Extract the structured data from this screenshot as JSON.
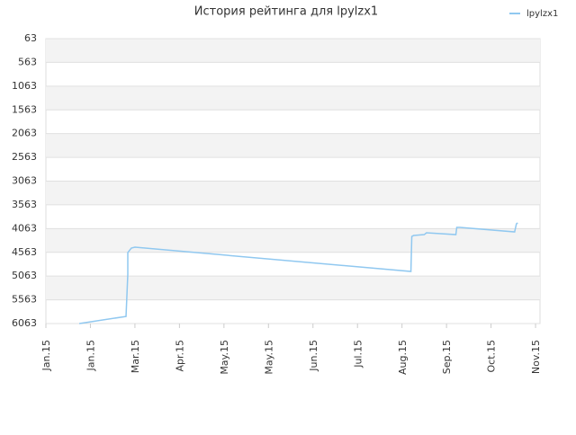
{
  "chart_data": {
    "type": "line",
    "title": "История рейтинга для lpylzx1",
    "x_inverted": false,
    "y_inverted": true,
    "grid": true,
    "banded": true,
    "legend": "top-right",
    "xlim": [
      0,
      11.1
    ],
    "xticks": [
      {
        "value": 0,
        "label": "Jan.15"
      },
      {
        "value": 1,
        "label": "Jan.15"
      },
      {
        "value": 2,
        "label": "Mar.15"
      },
      {
        "value": 3,
        "label": "Apr.15"
      },
      {
        "value": 4,
        "label": "May.15"
      },
      {
        "value": 5,
        "label": "May.15"
      },
      {
        "value": 6,
        "label": "Jun.15"
      },
      {
        "value": 7,
        "label": "Jul.15"
      },
      {
        "value": 8,
        "label": "Aug.15"
      },
      {
        "value": 9,
        "label": "Sep.15"
      },
      {
        "value": 10,
        "label": "Oct.15"
      },
      {
        "value": 11,
        "label": "Nov.15"
      }
    ],
    "ylim": [
      63,
      6063
    ],
    "yticks": [
      63,
      563,
      1063,
      1563,
      2063,
      2563,
      3063,
      3563,
      4063,
      4563,
      5063,
      5563,
      6063
    ],
    "series": [
      {
        "name": "lpylzx1",
        "color": "#90c8f0",
        "x": [
          0.75,
          1.8,
          1.84,
          1.84,
          1.92,
          2.0,
          8.2,
          8.22,
          8.26,
          8.5,
          8.55,
          9.21,
          9.23,
          9.3,
          10.53,
          10.57,
          10.6
        ],
        "values": [
          6063,
          5913,
          5023,
          4568,
          4474,
          4455,
          4966,
          4228,
          4209,
          4190,
          4152,
          4190,
          4038,
          4038,
          4133,
          3963,
          3944
        ]
      }
    ]
  }
}
